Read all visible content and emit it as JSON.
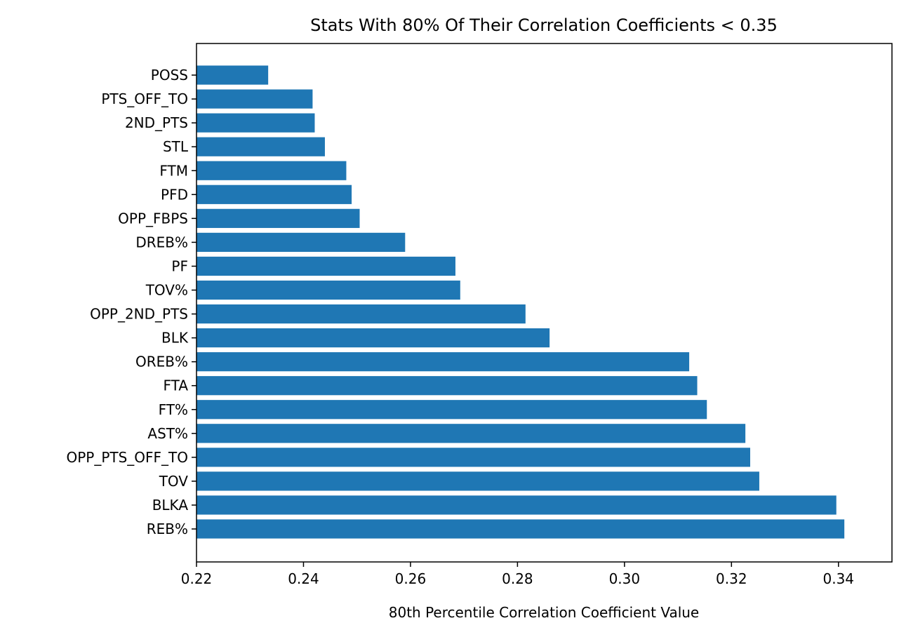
{
  "chart_data": {
    "type": "bar",
    "orientation": "horizontal",
    "title": "Stats With 80% Of Their Correlation Coefficients < 0.35",
    "xlabel": "80th Percentile Correlation Coefficient Value",
    "ylabel": "",
    "xlim": [
      0.22,
      0.35
    ],
    "xticks": [
      "0.22",
      "0.24",
      "0.26",
      "0.28",
      "0.30",
      "0.32",
      "0.34"
    ],
    "grid": false,
    "bar_color": "#1f77b4",
    "categories": [
      "REB%",
      "BLKA",
      "TOV",
      "OPP_PTS_OFF_TO",
      "AST%",
      "FT%",
      "FTA",
      "OREB%",
      "BLK",
      "OPP_2ND_PTS",
      "TOV%",
      "PF",
      "DREB%",
      "OPP_FBPS",
      "PFD",
      "FTM",
      "STL",
      "2ND_PTS",
      "PTS_OFF_TO",
      "POSS"
    ],
    "values": [
      0.3411,
      0.3396,
      0.3252,
      0.3235,
      0.3226,
      0.3154,
      0.3136,
      0.3121,
      0.286,
      0.2815,
      0.2693,
      0.2684,
      0.259,
      0.2505,
      0.249,
      0.248,
      0.244,
      0.2421,
      0.2417,
      0.2334
    ]
  }
}
